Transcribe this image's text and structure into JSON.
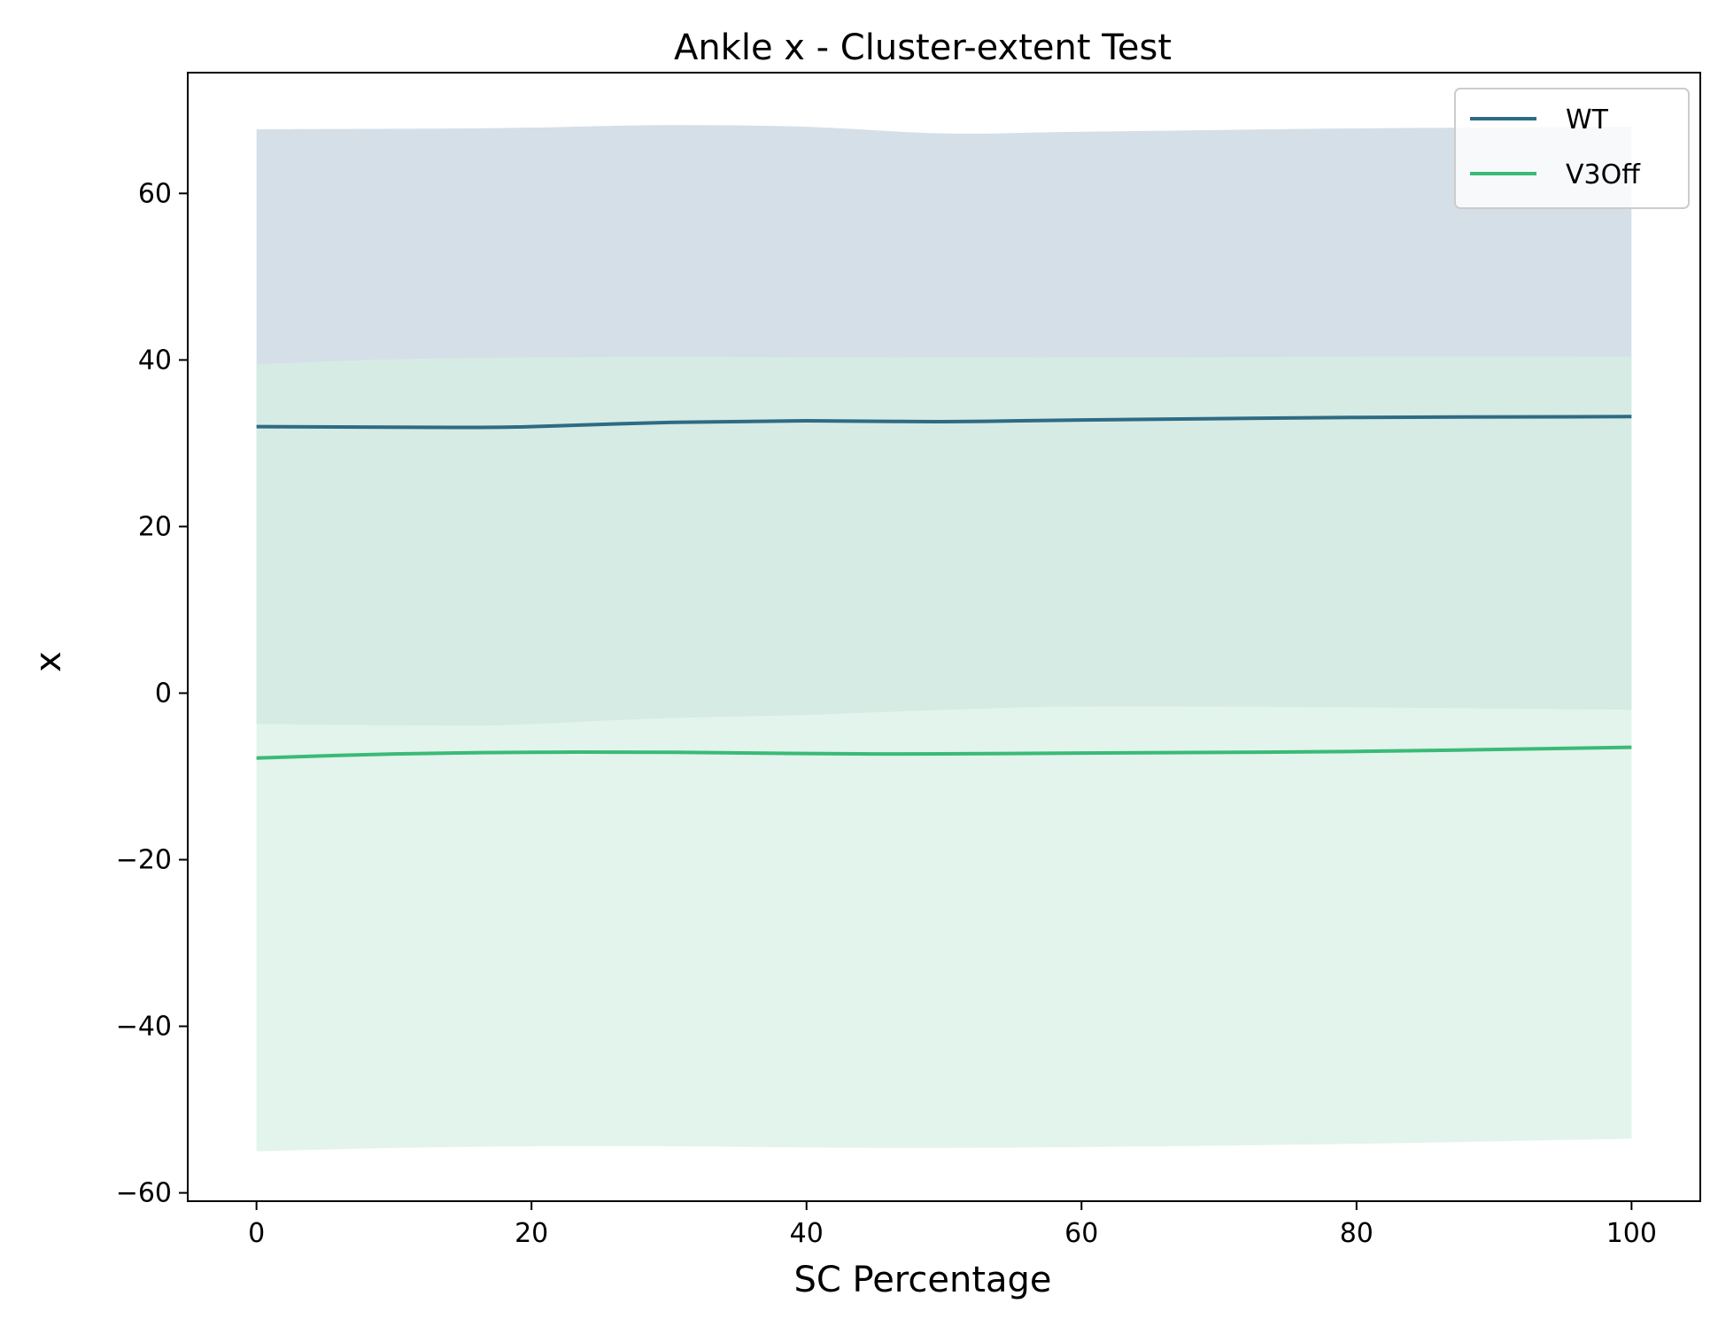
{
  "chart_data": {
    "type": "line",
    "title": "Ankle x - Cluster-extent Test",
    "xlabel": "SC Percentage",
    "ylabel": "x",
    "xlim": [
      -5,
      105
    ],
    "ylim": [
      -61,
      74.5
    ],
    "xticks": [
      0,
      20,
      40,
      60,
      80,
      100
    ],
    "yticks": [
      -60,
      -40,
      -20,
      0,
      20,
      40,
      60
    ],
    "xtick_labels": [
      "0",
      "20",
      "40",
      "60",
      "80",
      "100"
    ],
    "ytick_labels": [
      "−60",
      "−40",
      "−20",
      "0",
      "20",
      "40",
      "60"
    ],
    "grid": false,
    "legend": {
      "position": "upper right",
      "entries": [
        "WT",
        "V3Off"
      ]
    },
    "series": [
      {
        "name": "WT",
        "color": "#2e6b84",
        "band_color": "#d5dfe7",
        "x": [
          0,
          15,
          20,
          30,
          40,
          50,
          60,
          80,
          100
        ],
        "mean": [
          32.0,
          31.9,
          32.0,
          32.5,
          32.7,
          32.6,
          32.8,
          33.1,
          33.2
        ],
        "upper": [
          67.7,
          67.8,
          67.9,
          68.2,
          68.0,
          67.2,
          67.4,
          67.8,
          68.0
        ],
        "lower": [
          -3.7,
          -3.9,
          -3.7,
          -3.0,
          -2.6,
          -2.0,
          -1.6,
          -1.7,
          -2.0
        ]
      },
      {
        "name": "V3Off",
        "color": "#3aba78",
        "band_color": "#d6efe3",
        "x": [
          0,
          10,
          20,
          30,
          45,
          60,
          80,
          100
        ],
        "mean": [
          -7.8,
          -7.3,
          -7.1,
          -7.1,
          -7.3,
          -7.2,
          -7.0,
          -6.5
        ],
        "upper": [
          39.5,
          40.1,
          40.3,
          40.4,
          40.3,
          40.3,
          40.4,
          40.4
        ],
        "lower": [
          -55.0,
          -54.6,
          -54.4,
          -54.4,
          -54.6,
          -54.5,
          -54.1,
          -53.5
        ]
      }
    ]
  }
}
